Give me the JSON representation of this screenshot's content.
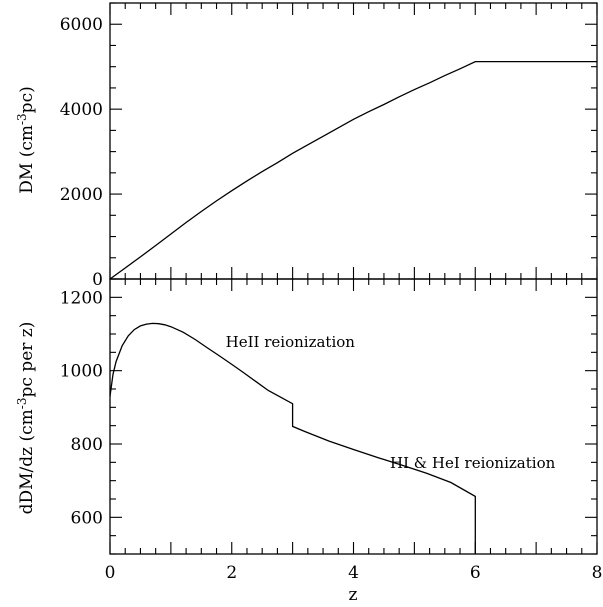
{
  "chart_data": [
    {
      "type": "line",
      "panel": "top",
      "ylabel_parts": {
        "main": "DM  (cm",
        "sup": "-3",
        "tail": "pc)"
      },
      "xlim": [
        0,
        8
      ],
      "ylim": [
        0,
        6500
      ],
      "yticks_major": [
        0,
        2000,
        4000,
        6000
      ],
      "yticks_major_labels": [
        "0",
        "2000",
        "4000",
        "6000"
      ],
      "series": [
        {
          "x": [
            0,
            0.25,
            0.5,
            0.75,
            1.0,
            1.25,
            1.5,
            1.75,
            2.0,
            2.25,
            2.5,
            2.75,
            3.0,
            3.25,
            3.5,
            3.75,
            4.0,
            4.25,
            4.5,
            4.75,
            5.0,
            5.25,
            5.5,
            5.75,
            6.0,
            6.5,
            7.0,
            7.5,
            8.0
          ],
          "y": [
            0,
            260,
            520,
            790,
            1060,
            1330,
            1590,
            1840,
            2080,
            2310,
            2530,
            2740,
            2960,
            3160,
            3360,
            3560,
            3760,
            3940,
            4110,
            4290,
            4460,
            4620,
            4790,
            4950,
            5120,
            5120,
            5120,
            5120,
            5120
          ]
        }
      ]
    },
    {
      "type": "line",
      "panel": "bottom",
      "ylabel_parts": {
        "main": "dDM/dz  (cm",
        "sup": "-3",
        "tail": "pc per z)"
      },
      "xlabel": "z",
      "xlim": [
        0,
        8
      ],
      "ylim": [
        500,
        1250
      ],
      "xticks_major": [
        0,
        2,
        4,
        6,
        8
      ],
      "xticks_major_labels": [
        "0",
        "2",
        "4",
        "6",
        "8"
      ],
      "yticks_major": [
        600,
        800,
        1000,
        1200
      ],
      "yticks_major_labels": [
        "600",
        "800",
        "1000",
        "1200"
      ],
      "annotations": [
        {
          "text": "HeII reionization",
          "x": 1.9,
          "y": 1065
        },
        {
          "text": "HI & HeI reionization",
          "x": 4.6,
          "y": 735
        }
      ],
      "series": [
        {
          "x": [
            0,
            0.05,
            0.1,
            0.2,
            0.3,
            0.4,
            0.5,
            0.6,
            0.7,
            0.8,
            0.9,
            1.0,
            1.2,
            1.4,
            1.6,
            1.8,
            2.0,
            2.2,
            2.4,
            2.6,
            2.8,
            3.0,
            3.0,
            3.2,
            3.6,
            4.0,
            4.4,
            4.8,
            5.2,
            5.6,
            6.0,
            6.0
          ],
          "y": [
            930,
            990,
            1025,
            1068,
            1095,
            1112,
            1122,
            1127,
            1129,
            1128,
            1125,
            1120,
            1105,
            1085,
            1062,
            1040,
            1017,
            994,
            970,
            946,
            928,
            910,
            848,
            834,
            808,
            785,
            763,
            742,
            720,
            695,
            657,
            500
          ]
        }
      ]
    }
  ]
}
